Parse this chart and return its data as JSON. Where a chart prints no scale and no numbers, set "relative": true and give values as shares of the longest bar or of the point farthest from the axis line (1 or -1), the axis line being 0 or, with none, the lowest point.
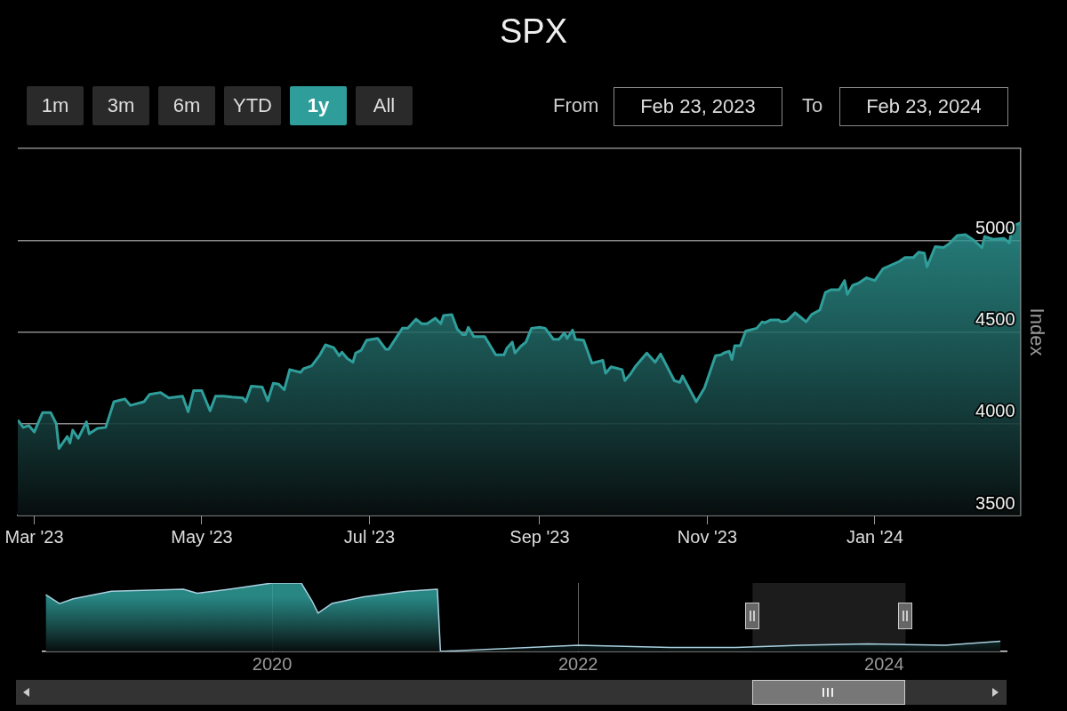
{
  "chart_data": [
    {
      "type": "area",
      "title": "SPX",
      "ylabel": "Index",
      "color": "#2f9e9a",
      "marker": "none",
      "grid": "y",
      "annotations": [
        "1m",
        "3m",
        "6m",
        "YTD",
        "1y",
        "All",
        "From",
        "Feb 23, 2023",
        "To",
        "Feb 23, 2024"
      ],
      "xlim": [
        "2023-02-23",
        "2024-02-23"
      ],
      "xticks": [
        {
          "value": "2023-03-01",
          "label": "Mar '23"
        },
        {
          "value": "2023-05-01",
          "label": "May '23"
        },
        {
          "value": "2023-07-01",
          "label": "Jul '23"
        },
        {
          "value": "2023-09-01",
          "label": "Sep '23"
        },
        {
          "value": "2023-11-01",
          "label": "Nov '23"
        },
        {
          "value": "2024-01-01",
          "label": "Jan '24"
        }
      ],
      "ylim": [
        3500,
        5500
      ],
      "yticks": [
        3500,
        4000,
        4500,
        5000,
        {
          "value": 5500,
          "label": null
        }
      ],
      "x": [
        "2023-02-23",
        "2023-02-25",
        "2023-02-27",
        "2023-03-01",
        "2023-03-04",
        "2023-03-07",
        "2023-03-09",
        "2023-03-10",
        "2023-03-13",
        "2023-03-14",
        "2023-03-15",
        "2023-03-17",
        "2023-03-20",
        "2023-03-21",
        "2023-03-24",
        "2023-03-27",
        "2023-03-30",
        "2023-04-03",
        "2023-04-05",
        "2023-04-10",
        "2023-04-12",
        "2023-04-16",
        "2023-04-19",
        "2023-04-24",
        "2023-04-26",
        "2023-04-28",
        "2023-05-01",
        "2023-05-04",
        "2023-05-06",
        "2023-05-09",
        "2023-05-12",
        "2023-05-16",
        "2023-05-17",
        "2023-05-19",
        "2023-05-23",
        "2023-05-25",
        "2023-05-27",
        "2023-05-29",
        "2023-05-31",
        "2023-06-02",
        "2023-06-06",
        "2023-06-07",
        "2023-06-10",
        "2023-06-13",
        "2023-06-15",
        "2023-06-18",
        "2023-06-20",
        "2023-06-21",
        "2023-06-23",
        "2023-06-25",
        "2023-06-26",
        "2023-06-28",
        "2023-06-30",
        "2023-07-04",
        "2023-07-07",
        "2023-07-08",
        "2023-07-13",
        "2023-07-15",
        "2023-07-18",
        "2023-07-20",
        "2023-07-22",
        "2023-07-25",
        "2023-07-27",
        "2023-07-28",
        "2023-07-31",
        "2023-08-02",
        "2023-08-04",
        "2023-08-05",
        "2023-08-06",
        "2023-08-08",
        "2023-08-12",
        "2023-08-16",
        "2023-08-19",
        "2023-08-20",
        "2023-08-22",
        "2023-08-23",
        "2023-08-25",
        "2023-08-27",
        "2023-08-29",
        "2023-09-01",
        "2023-09-03",
        "2023-09-06",
        "2023-09-08",
        "2023-09-10",
        "2023-09-11",
        "2023-09-13",
        "2023-09-14",
        "2023-09-17",
        "2023-09-20",
        "2023-09-24",
        "2023-09-25",
        "2023-09-27",
        "2023-10-01",
        "2023-10-02",
        "2023-10-04",
        "2023-10-06",
        "2023-10-10",
        "2023-10-13",
        "2023-10-15",
        "2023-10-20",
        "2023-10-22",
        "2023-10-23",
        "2023-10-28",
        "2023-10-31",
        "2023-11-04",
        "2023-11-06",
        "2023-11-07",
        "2023-11-09",
        "2023-11-10",
        "2023-11-11",
        "2023-11-13",
        "2023-11-15",
        "2023-11-19",
        "2023-11-21",
        "2023-11-22",
        "2023-11-24",
        "2023-11-27",
        "2023-11-28",
        "2023-11-30",
        "2023-12-03",
        "2023-12-05",
        "2023-12-07",
        "2023-12-09",
        "2023-12-12",
        "2023-12-14",
        "2023-12-16",
        "2023-12-19",
        "2023-12-21",
        "2023-12-22",
        "2023-12-24",
        "2023-12-26",
        "2023-12-29",
        "2024-01-01",
        "2024-01-04",
        "2024-01-10",
        "2024-01-12",
        "2024-01-15",
        "2024-01-17",
        "2024-01-19",
        "2024-01-20",
        "2024-01-23",
        "2024-01-26",
        "2024-01-28",
        "2024-01-31",
        "2024-02-03",
        "2024-02-06",
        "2024-02-09",
        "2024-02-10",
        "2024-02-13",
        "2024-02-17",
        "2024-02-19",
        "2024-02-20",
        "2024-02-23"
      ],
      "values": [
        4020,
        3980,
        3990,
        3955,
        4060,
        4060,
        4000,
        3865,
        3930,
        3895,
        3965,
        3920,
        4010,
        3945,
        3975,
        3980,
        4120,
        4135,
        4100,
        4120,
        4160,
        4170,
        4140,
        4150,
        4065,
        4180,
        4180,
        4070,
        4150,
        4150,
        4145,
        4140,
        4120,
        4205,
        4200,
        4125,
        4220,
        4215,
        4185,
        4295,
        4280,
        4300,
        4315,
        4375,
        4430,
        4415,
        4370,
        4390,
        4355,
        4335,
        4385,
        4400,
        4455,
        4465,
        4405,
        4405,
        4520,
        4520,
        4570,
        4545,
        4545,
        4575,
        4545,
        4590,
        4595,
        4515,
        4485,
        4485,
        4525,
        4475,
        4475,
        4375,
        4375,
        4410,
        4445,
        4385,
        4420,
        4445,
        4520,
        4525,
        4520,
        4460,
        4460,
        4495,
        4465,
        4510,
        4460,
        4455,
        4330,
        4345,
        4275,
        4310,
        4295,
        4235,
        4270,
        4315,
        4385,
        4335,
        4380,
        4235,
        4225,
        4260,
        4120,
        4195,
        4370,
        4375,
        4385,
        4395,
        4350,
        4425,
        4425,
        4505,
        4520,
        4555,
        4550,
        4565,
        4565,
        4555,
        4560,
        4605,
        4580,
        4555,
        4595,
        4620,
        4715,
        4730,
        4730,
        4780,
        4705,
        4755,
        4765,
        4795,
        4780,
        4845,
        4885,
        4905,
        4905,
        4935,
        4930,
        4855,
        4965,
        4960,
        4980,
        5025,
        5030,
        5000,
        4960,
        5020,
        5005,
        5010,
        4985,
        5075,
        5095
      ]
    },
    {
      "type": "area",
      "relative": true,
      "color": "#a9d0e0",
      "marker": "none",
      "grid": "x",
      "tick_labels": "x",
      "xlim": [
        2018.5,
        2024.8
      ],
      "xticks": [
        2020,
        2022,
        2024
      ],
      "bands": [
        {
          "axis": "x",
          "from": 2023.14,
          "to": 2024.14,
          "color": "#1c1c1c"
        }
      ],
      "x": [
        2018.52,
        2018.61,
        2018.7,
        2018.95,
        2019.42,
        2019.51,
        2019.72,
        2020.0,
        2020.19,
        2020.26,
        2020.3,
        2020.39,
        2020.6,
        2020.88,
        2021.08,
        2021.1,
        2022.0,
        2022.6,
        2023.03,
        2023.46,
        2023.89,
        2024.4,
        2024.76
      ],
      "values": [
        0.83,
        0.7,
        0.77,
        0.88,
        0.91,
        0.85,
        0.91,
        1,
        1,
        0.74,
        0.56,
        0.7,
        0.8,
        0.88,
        0.91,
        0,
        0.09,
        0.06,
        0.06,
        0.09,
        0.11,
        0.09,
        0.15
      ]
    }
  ]
}
